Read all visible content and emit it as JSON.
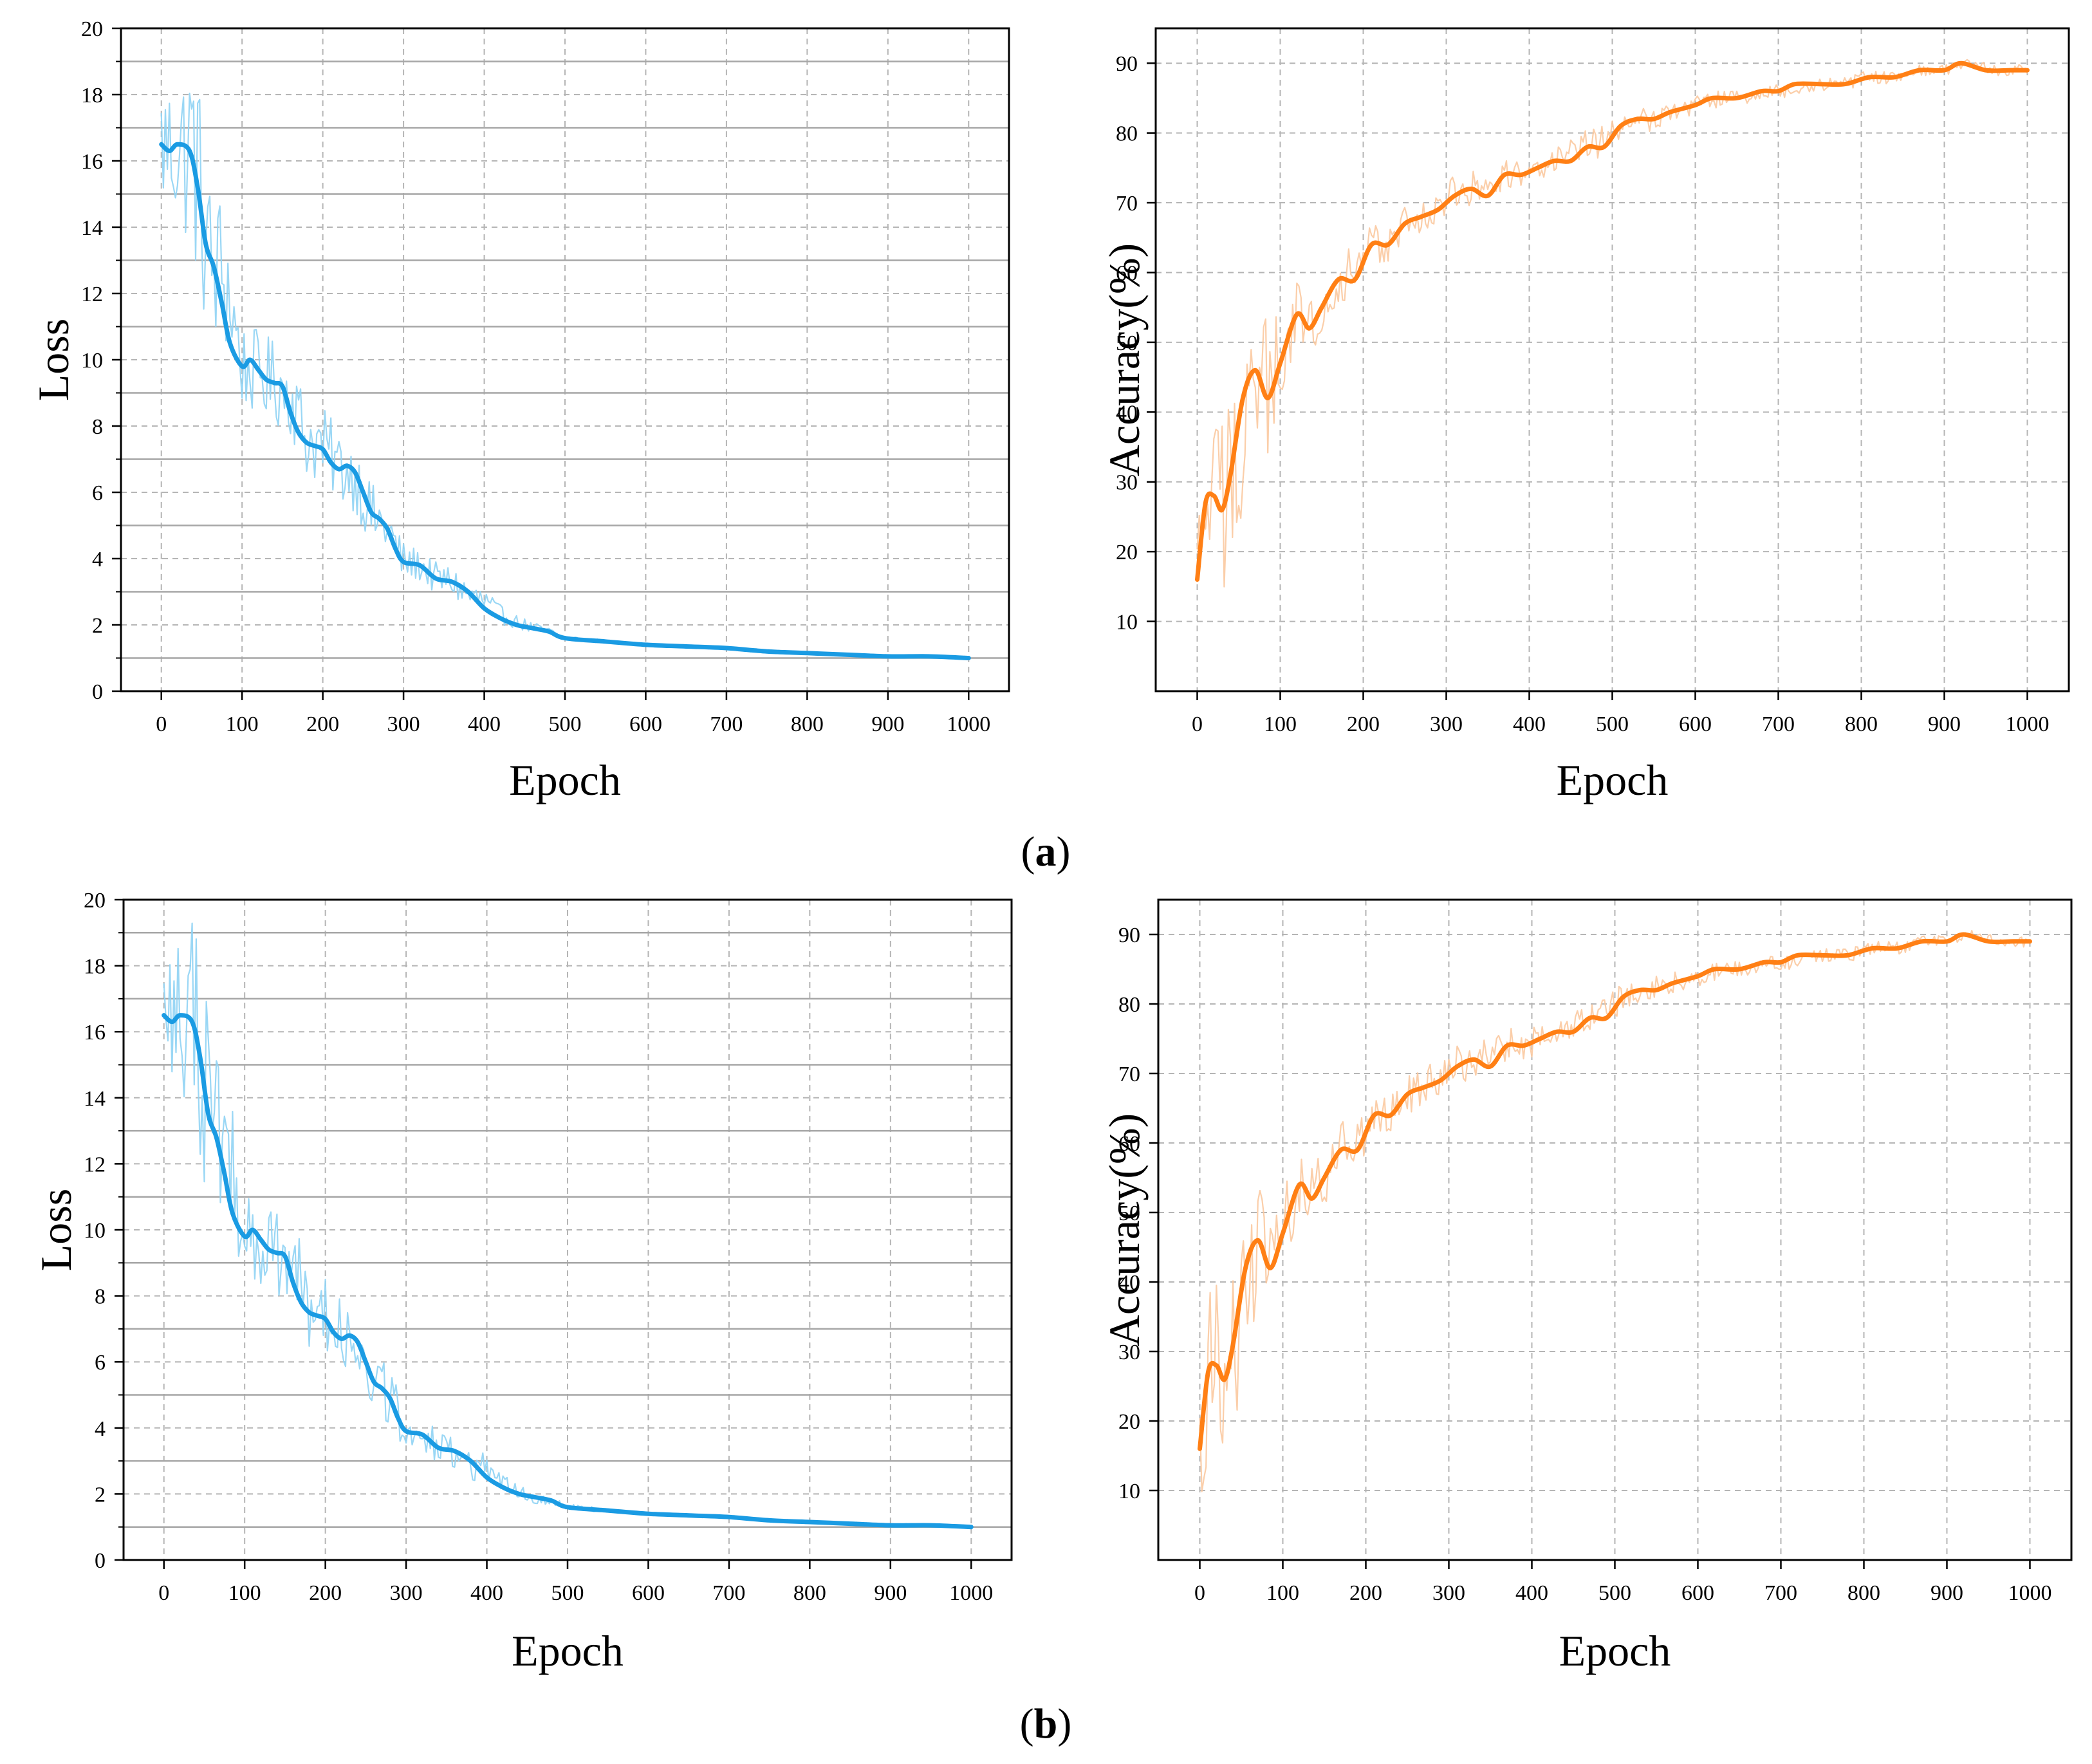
{
  "figure": {
    "panel_labels": [
      {
        "open": "(",
        "letter": "a",
        "close": ")"
      },
      {
        "open": "(",
        "letter": "b",
        "close": ")"
      }
    ]
  },
  "colors": {
    "loss_main": "#1a9be3",
    "loss_raw": "#8fd3f4",
    "acc_main": "#ff7f14",
    "acc_raw": "#fbc9a0",
    "grid": "#b5b5b5",
    "axis": "#000000"
  },
  "chart_data": [
    {
      "id": "a-loss",
      "panel": "a",
      "type": "line",
      "title": "",
      "xlabel": "Epoch",
      "ylabel": "Loss",
      "xlim": [
        -50,
        1050
      ],
      "ylim": [
        0,
        20
      ],
      "xticks": [
        0,
        100,
        200,
        300,
        400,
        500,
        600,
        700,
        800,
        900,
        1000
      ],
      "yticks": [
        0,
        2,
        4,
        6,
        8,
        10,
        12,
        14,
        16,
        18,
        20
      ],
      "y_minor_grid": [
        1,
        3,
        5,
        7,
        9,
        11,
        13,
        15,
        17,
        19
      ],
      "grid": true,
      "series": [
        {
          "name": "raw",
          "style": "raw",
          "x": [
            0,
            20,
            40,
            60,
            80,
            100,
            120,
            140,
            160,
            180,
            200,
            220,
            240,
            260,
            280,
            300,
            320,
            340,
            360,
            380,
            400,
            420,
            440,
            460,
            480,
            500,
            550,
            600,
            650,
            700,
            750,
            800,
            850,
            900,
            950,
            1000
          ],
          "y": [
            16.5,
            16.3,
            16.4,
            12.8,
            12.5,
            9.8,
            9.6,
            9.3,
            9.0,
            7.6,
            7.4,
            6.8,
            6.5,
            5.3,
            4.9,
            3.9,
            3.8,
            3.4,
            3.3,
            2.9,
            2.7,
            2.3,
            2.1,
            1.9,
            1.8,
            1.6,
            1.5,
            1.4,
            1.35,
            1.3,
            1.2,
            1.15,
            1.1,
            1.05,
            1.05,
            1.0
          ],
          "noise": [
            2.2,
            2.2,
            3.5,
            2.8,
            2.4,
            1.3,
            1.3,
            1.3,
            1.3,
            1.2,
            1.2,
            1.1,
            1.1,
            1.0,
            0.9,
            0.6,
            0.5,
            0.5,
            0.5,
            0.5,
            0.5,
            0.3,
            0.2,
            0.2,
            0.15,
            0.1,
            0.05,
            0.05,
            0.05,
            0.05,
            0.05,
            0.05,
            0.05,
            0.05,
            0.05,
            0.05
          ]
        },
        {
          "name": "smoothed",
          "style": "main",
          "x": [
            0,
            10,
            20,
            35,
            45,
            55,
            65,
            75,
            85,
            100,
            110,
            120,
            130,
            140,
            150,
            160,
            170,
            180,
            190,
            200,
            210,
            220,
            230,
            240,
            250,
            260,
            270,
            280,
            290,
            300,
            320,
            340,
            360,
            380,
            400,
            420,
            440,
            460,
            480,
            500,
            550,
            600,
            650,
            700,
            750,
            800,
            850,
            900,
            950,
            1000
          ],
          "y": [
            16.5,
            16.3,
            16.5,
            16.3,
            15.2,
            13.5,
            12.8,
            11.7,
            10.5,
            9.8,
            10.0,
            9.7,
            9.4,
            9.3,
            9.2,
            8.4,
            7.8,
            7.5,
            7.4,
            7.3,
            6.9,
            6.7,
            6.8,
            6.6,
            6.0,
            5.4,
            5.2,
            4.9,
            4.3,
            3.9,
            3.8,
            3.4,
            3.3,
            3.0,
            2.5,
            2.2,
            2.0,
            1.9,
            1.8,
            1.6,
            1.5,
            1.4,
            1.35,
            1.3,
            1.2,
            1.15,
            1.1,
            1.05,
            1.05,
            1.0
          ]
        }
      ]
    },
    {
      "id": "a-acc",
      "panel": "a",
      "type": "line",
      "title": "",
      "xlabel": "Epoch",
      "ylabel": "Accuracy(%)",
      "xlim": [
        -50,
        1050
      ],
      "ylim": [
        0,
        95
      ],
      "xticks": [
        0,
        100,
        200,
        300,
        400,
        500,
        600,
        700,
        800,
        900,
        1000
      ],
      "yticks": [
        10,
        20,
        30,
        40,
        50,
        60,
        70,
        80,
        90
      ],
      "y_minor_grid": [],
      "grid": true,
      "series": [
        {
          "name": "raw",
          "style": "raw",
          "x": [
            0,
            15,
            30,
            45,
            60,
            75,
            90,
            105,
            120,
            135,
            150,
            170,
            190,
            210,
            230,
            250,
            270,
            290,
            310,
            330,
            350,
            370,
            390,
            410,
            430,
            450,
            470,
            490,
            510,
            540,
            570,
            600,
            630,
            660,
            690,
            720,
            750,
            780,
            810,
            840,
            870,
            900,
            930,
            960,
            1000
          ],
          "y": [
            16,
            28,
            26,
            31,
            42,
            45,
            42,
            50,
            54,
            52,
            55,
            59,
            60,
            64,
            64,
            67,
            68,
            69,
            71,
            72,
            73,
            74,
            74,
            75,
            76,
            77,
            78,
            79,
            81,
            82,
            83,
            84,
            85,
            85,
            86,
            86,
            87,
            87,
            88,
            88,
            89,
            89,
            90,
            89,
            89
          ],
          "noise": [
            10,
            13,
            15,
            12,
            12,
            12,
            12,
            6,
            5,
            5,
            4,
            4,
            4,
            3,
            3,
            3,
            3,
            3,
            3,
            2.5,
            2.5,
            2.5,
            2.5,
            2,
            2,
            2,
            2.5,
            2.5,
            2,
            2,
            1.5,
            1.5,
            1.2,
            1,
            1,
            1,
            1,
            1,
            1,
            1,
            0.8,
            0.8,
            0.8,
            0.8,
            0.8
          ]
        },
        {
          "name": "smoothed",
          "style": "main",
          "x": [
            0,
            10,
            20,
            30,
            40,
            55,
            70,
            85,
            100,
            120,
            135,
            150,
            170,
            190,
            210,
            230,
            250,
            270,
            290,
            310,
            330,
            350,
            370,
            390,
            410,
            430,
            450,
            470,
            490,
            510,
            530,
            550,
            570,
            600,
            620,
            650,
            680,
            700,
            720,
            750,
            780,
            810,
            840,
            870,
            900,
            920,
            950,
            980,
            1000
          ],
          "y": [
            16,
            27,
            28,
            26,
            31,
            42,
            46,
            42,
            47,
            54,
            52,
            55,
            59,
            59,
            64,
            64,
            67,
            68,
            69,
            71,
            72,
            71,
            74,
            74,
            75,
            76,
            76,
            78,
            78,
            81,
            82,
            82,
            83,
            84,
            85,
            85,
            86,
            86,
            87,
            87,
            87,
            88,
            88,
            89,
            89,
            90,
            89,
            89,
            89
          ]
        }
      ]
    },
    {
      "id": "b-loss",
      "panel": "b",
      "type": "line",
      "title": "",
      "xlabel": "Epoch",
      "ylabel": "Loss",
      "xlim": [
        -50,
        1050
      ],
      "ylim": [
        0,
        20
      ],
      "xticks": [
        0,
        100,
        200,
        300,
        400,
        500,
        600,
        700,
        800,
        900,
        1000
      ],
      "yticks": [
        0,
        2,
        4,
        6,
        8,
        10,
        12,
        14,
        16,
        18,
        20
      ],
      "y_minor_grid": [
        1,
        3,
        5,
        7,
        9,
        11,
        13,
        15,
        17,
        19
      ],
      "grid": true,
      "series": [
        {
          "name": "raw",
          "style": "raw",
          "x": [
            0,
            20,
            40,
            60,
            80,
            100,
            120,
            140,
            160,
            180,
            200,
            220,
            240,
            260,
            280,
            300,
            320,
            340,
            360,
            380,
            400,
            420,
            440,
            460,
            480,
            500,
            550,
            600,
            650,
            700,
            750,
            800,
            850,
            900,
            950,
            1000
          ],
          "y": [
            16.5,
            16.3,
            16.4,
            12.8,
            12.5,
            9.8,
            9.6,
            9.3,
            9.0,
            7.6,
            7.4,
            6.8,
            6.5,
            5.3,
            4.9,
            3.9,
            3.8,
            3.4,
            3.3,
            2.9,
            2.7,
            2.3,
            2.1,
            1.9,
            1.8,
            1.6,
            1.5,
            1.4,
            1.35,
            1.3,
            1.2,
            1.15,
            1.1,
            1.05,
            1.05,
            1.0
          ],
          "noise": [
            2.2,
            2.2,
            3.5,
            2.8,
            2.4,
            1.3,
            1.3,
            1.3,
            1.3,
            1.2,
            1.2,
            1.1,
            1.1,
            1.0,
            0.9,
            0.6,
            0.5,
            0.5,
            0.5,
            0.5,
            0.5,
            0.3,
            0.2,
            0.2,
            0.15,
            0.1,
            0.05,
            0.05,
            0.05,
            0.05,
            0.05,
            0.05,
            0.05,
            0.05,
            0.05,
            0.05
          ]
        },
        {
          "name": "smoothed",
          "style": "main",
          "x": [
            0,
            10,
            20,
            35,
            45,
            55,
            65,
            75,
            85,
            100,
            110,
            120,
            130,
            140,
            150,
            160,
            170,
            180,
            190,
            200,
            210,
            220,
            230,
            240,
            250,
            260,
            270,
            280,
            290,
            300,
            320,
            340,
            360,
            380,
            400,
            420,
            440,
            460,
            480,
            500,
            550,
            600,
            650,
            700,
            750,
            800,
            850,
            900,
            950,
            1000
          ],
          "y": [
            16.5,
            16.3,
            16.5,
            16.3,
            15.2,
            13.5,
            12.8,
            11.7,
            10.5,
            9.8,
            10.0,
            9.7,
            9.4,
            9.3,
            9.2,
            8.4,
            7.8,
            7.5,
            7.4,
            7.3,
            6.9,
            6.7,
            6.8,
            6.6,
            6.0,
            5.4,
            5.2,
            4.9,
            4.3,
            3.9,
            3.8,
            3.4,
            3.3,
            3.0,
            2.5,
            2.2,
            2.0,
            1.9,
            1.8,
            1.6,
            1.5,
            1.4,
            1.35,
            1.3,
            1.2,
            1.15,
            1.1,
            1.05,
            1.05,
            1.0
          ]
        }
      ]
    },
    {
      "id": "b-acc",
      "panel": "b",
      "type": "line",
      "title": "",
      "xlabel": "Epoch",
      "ylabel": "Accuracy(%)",
      "xlim": [
        -50,
        1050
      ],
      "ylim": [
        0,
        95
      ],
      "xticks": [
        0,
        100,
        200,
        300,
        400,
        500,
        600,
        700,
        800,
        900,
        1000
      ],
      "yticks": [
        10,
        20,
        30,
        40,
        50,
        60,
        70,
        80,
        90
      ],
      "y_minor_grid": [],
      "grid": true,
      "series": [
        {
          "name": "raw",
          "style": "raw",
          "x": [
            0,
            15,
            30,
            45,
            60,
            75,
            90,
            105,
            120,
            135,
            150,
            170,
            190,
            210,
            230,
            250,
            270,
            290,
            310,
            330,
            350,
            370,
            390,
            410,
            430,
            450,
            470,
            490,
            510,
            540,
            570,
            600,
            630,
            660,
            690,
            720,
            750,
            780,
            810,
            840,
            870,
            900,
            930,
            960,
            1000
          ],
          "y": [
            16,
            28,
            26,
            31,
            42,
            45,
            42,
            50,
            54,
            52,
            55,
            59,
            60,
            64,
            64,
            67,
            68,
            69,
            71,
            72,
            73,
            74,
            74,
            75,
            76,
            77,
            78,
            79,
            81,
            82,
            83,
            84,
            85,
            85,
            86,
            86,
            87,
            87,
            88,
            88,
            89,
            89,
            90,
            89,
            89
          ],
          "noise": [
            10,
            13,
            15,
            12,
            12,
            12,
            12,
            6,
            5,
            5,
            4,
            4,
            4,
            3,
            3,
            3,
            3,
            3,
            3,
            2.5,
            2.5,
            2.5,
            2.5,
            2,
            2,
            2,
            2.5,
            2.5,
            2,
            2,
            1.5,
            1.5,
            1.2,
            1,
            1,
            1,
            1,
            1,
            1,
            1,
            0.8,
            0.8,
            0.8,
            0.8,
            0.8
          ]
        },
        {
          "name": "smoothed",
          "style": "main",
          "x": [
            0,
            10,
            20,
            30,
            40,
            55,
            70,
            85,
            100,
            120,
            135,
            150,
            170,
            190,
            210,
            230,
            250,
            270,
            290,
            310,
            330,
            350,
            370,
            390,
            410,
            430,
            450,
            470,
            490,
            510,
            530,
            550,
            570,
            600,
            620,
            650,
            680,
            700,
            720,
            750,
            780,
            810,
            840,
            870,
            900,
            920,
            950,
            980,
            1000
          ],
          "y": [
            16,
            27,
            28,
            26,
            31,
            42,
            46,
            42,
            47,
            54,
            52,
            55,
            59,
            59,
            64,
            64,
            67,
            68,
            69,
            71,
            72,
            71,
            74,
            74,
            75,
            76,
            76,
            78,
            78,
            81,
            82,
            82,
            83,
            84,
            85,
            85,
            86,
            86,
            87,
            87,
            87,
            88,
            88,
            89,
            89,
            90,
            89,
            89,
            89
          ]
        }
      ]
    }
  ]
}
